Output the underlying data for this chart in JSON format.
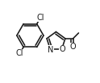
{
  "bg_color": "#ffffff",
  "bond_color": "#1a1a1a",
  "bond_width": 1.15,
  "font_size": 7.0,
  "dbo": 0.022,
  "figsize": [
    1.24,
    1.03
  ],
  "dpi": 100,
  "xlim": [
    0.05,
    0.95
  ],
  "ylim": [
    0.08,
    0.98
  ]
}
